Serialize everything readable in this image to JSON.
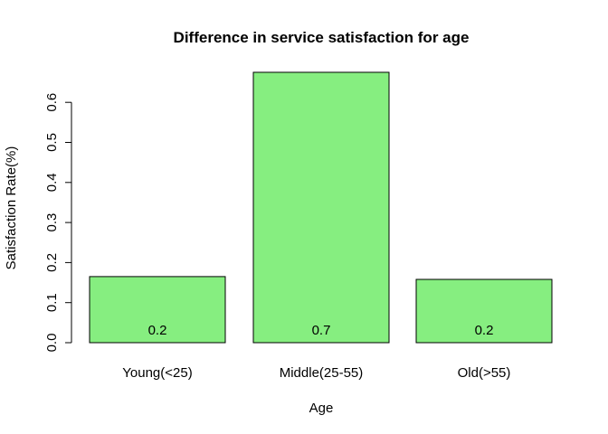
{
  "chart_data": {
    "type": "bar",
    "title": "Difference in service satisfaction for age",
    "xlabel": "Age",
    "ylabel": "Satisfaction Rate(%)",
    "categories": [
      "Young(<25)",
      "Middle(25-55)",
      "Old(>55)"
    ],
    "values": [
      0.165,
      0.675,
      0.158
    ],
    "data_labels": [
      "0.2",
      "0.7",
      "0.2"
    ],
    "yticks": [
      0.0,
      0.1,
      0.2,
      0.3,
      0.4,
      0.5,
      0.6
    ],
    "ytick_labels": [
      "0.0",
      "0.1",
      "0.2",
      "0.3",
      "0.4",
      "0.5",
      "0.6"
    ],
    "ylim": [
      0,
      0.7
    ],
    "grid": false,
    "legend": "none",
    "bar_color": "#86ee80",
    "border_color": "#000000"
  }
}
